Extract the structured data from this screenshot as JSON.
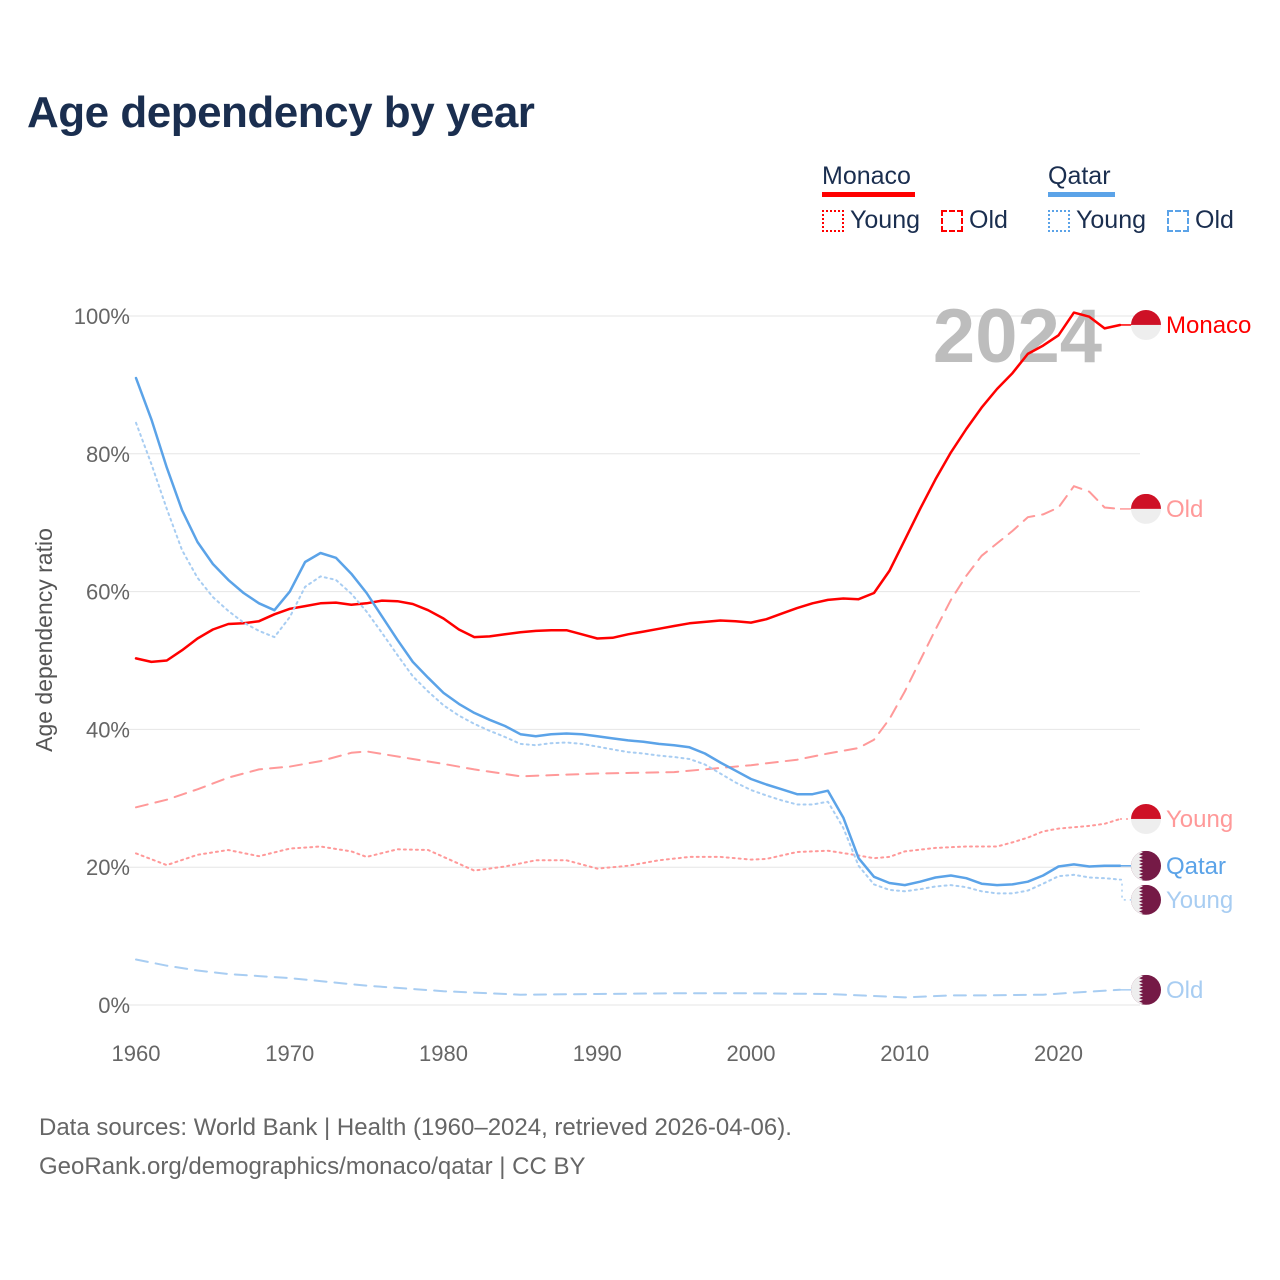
{
  "title": "Age dependency by year",
  "legend": {
    "groups": [
      {
        "name": "Monaco",
        "color": "#ff0000",
        "young_label": "Young",
        "old_label": "Old",
        "light": "#ff9999"
      },
      {
        "name": "Qatar",
        "color": "#5ba3e8",
        "young_label": "Young",
        "old_label": "Old",
        "light": "#a8cdf2"
      }
    ]
  },
  "year_watermark": "2024",
  "footer": {
    "line1": "Data sources: World Bank | Health (1960–2024, retrieved 2026-04-06).",
    "line2": "GeoRank.org/demographics/monaco/qatar | CC BY"
  },
  "chart_data": {
    "type": "line",
    "title": "Age dependency by year",
    "xlabel": "",
    "ylabel": "Age dependency ratio",
    "xlim": [
      1960,
      2024
    ],
    "ylim": [
      0,
      100
    ],
    "x_ticks": [
      "1960",
      "1970",
      "1980",
      "1990",
      "2000",
      "2010",
      "2020"
    ],
    "y_ticks": [
      "0%",
      "20%",
      "40%",
      "60%",
      "80%",
      "100%"
    ],
    "grid": true,
    "legend_position": "top-right",
    "series": [
      {
        "name": "Monaco",
        "end_label": "Monaco",
        "country": "Monaco",
        "style": "solid",
        "color": "#ff0000",
        "x": [
          1960,
          1961,
          1962,
          1963,
          1964,
          1965,
          1966,
          1967,
          1968,
          1969,
          1970,
          1971,
          1972,
          1973,
          1974,
          1975,
          1976,
          1977,
          1978,
          1979,
          1980,
          1981,
          1982,
          1983,
          1984,
          1985,
          1986,
          1987,
          1988,
          1989,
          1990,
          1991,
          1992,
          1993,
          1994,
          1995,
          1996,
          1997,
          1998,
          1999,
          2000,
          2001,
          2002,
          2003,
          2004,
          2005,
          2006,
          2007,
          2008,
          2009,
          2010,
          2011,
          2012,
          2013,
          2014,
          2015,
          2016,
          2017,
          2018,
          2019,
          2020,
          2021,
          2022,
          2023,
          2024
        ],
        "values": [
          50.3,
          49.8,
          50.0,
          51.5,
          53.2,
          54.5,
          55.3,
          55.4,
          55.7,
          56.7,
          57.5,
          57.9,
          58.3,
          58.4,
          58.1,
          58.3,
          58.7,
          58.6,
          58.2,
          57.3,
          56.1,
          54.5,
          53.4,
          53.5,
          53.8,
          54.1,
          54.3,
          54.4,
          54.4,
          53.8,
          53.2,
          53.3,
          53.8,
          54.2,
          54.6,
          55.0,
          55.4,
          55.6,
          55.8,
          55.7,
          55.5,
          56.0,
          56.8,
          57.6,
          58.3,
          58.8,
          59.0,
          58.9,
          59.8,
          63.0,
          67.5,
          72.0,
          76.3,
          80.2,
          83.6,
          86.7,
          89.4,
          91.7,
          94.5,
          95.7,
          97.2,
          100.5,
          99.9,
          98.2,
          98.7
        ]
      },
      {
        "name": "Monaco Old",
        "end_label": "Old",
        "country": "Monaco",
        "style": "dashed",
        "color": "#ff9999",
        "x": [
          1960,
          1962,
          1964,
          1966,
          1968,
          1970,
          1972,
          1974,
          1975,
          1978,
          1980,
          1982,
          1985,
          1990,
          1995,
          2000,
          2003,
          2005,
          2007,
          2008,
          2009,
          2010,
          2011,
          2012,
          2013,
          2014,
          2015,
          2016,
          2017,
          2018,
          2019,
          2020,
          2021,
          2022,
          2023,
          2024
        ],
        "values": [
          28.7,
          29.8,
          31.3,
          33.0,
          34.2,
          34.6,
          35.4,
          36.6,
          36.8,
          35.7,
          35.0,
          34.2,
          33.2,
          33.6,
          33.8,
          34.8,
          35.6,
          36.5,
          37.3,
          38.5,
          41.5,
          45.5,
          50.0,
          54.5,
          58.8,
          62.3,
          65.2,
          67.0,
          68.8,
          70.8,
          71.2,
          72.2,
          75.3,
          74.5,
          72.2,
          72.0
        ]
      },
      {
        "name": "Monaco Young",
        "end_label": "Young",
        "country": "Monaco",
        "style": "dotted",
        "color": "#ff9999",
        "x": [
          1960,
          1962,
          1964,
          1966,
          1968,
          1970,
          1972,
          1974,
          1975,
          1977,
          1979,
          1980,
          1982,
          1984,
          1986,
          1988,
          1990,
          1992,
          1994,
          1996,
          1998,
          2000,
          2001,
          2003,
          2005,
          2007,
          2008,
          2009,
          2010,
          2012,
          2014,
          2016,
          2017,
          2018,
          2019,
          2020,
          2022,
          2023,
          2024
        ],
        "values": [
          22.0,
          20.3,
          21.8,
          22.5,
          21.6,
          22.7,
          23.0,
          22.3,
          21.5,
          22.6,
          22.5,
          21.5,
          19.5,
          20.1,
          21.0,
          21.0,
          19.8,
          20.2,
          21.0,
          21.5,
          21.5,
          21.1,
          21.2,
          22.2,
          22.4,
          21.7,
          21.3,
          21.5,
          22.3,
          22.8,
          23.0,
          23.0,
          23.6,
          24.3,
          25.2,
          25.6,
          26.0,
          26.3,
          27.0
        ]
      },
      {
        "name": "Qatar",
        "end_label": "Qatar",
        "country": "Qatar",
        "style": "solid",
        "color": "#5ba3e8",
        "x": [
          1960,
          1961,
          1962,
          1963,
          1964,
          1965,
          1966,
          1967,
          1968,
          1969,
          1970,
          1971,
          1972,
          1973,
          1974,
          1975,
          1976,
          1977,
          1978,
          1979,
          1980,
          1981,
          1982,
          1983,
          1984,
          1985,
          1986,
          1987,
          1988,
          1989,
          1990,
          1991,
          1992,
          1993,
          1994,
          1995,
          1996,
          1997,
          1998,
          1999,
          2000,
          2001,
          2002,
          2003,
          2004,
          2005,
          2006,
          2007,
          2008,
          2009,
          2010,
          2011,
          2012,
          2013,
          2014,
          2015,
          2016,
          2017,
          2018,
          2019,
          2020,
          2021,
          2022,
          2023,
          2024
        ],
        "values": [
          91.0,
          85.0,
          78.0,
          71.8,
          67.2,
          64.0,
          61.7,
          59.8,
          58.3,
          57.3,
          60.0,
          64.3,
          65.6,
          64.9,
          62.6,
          59.8,
          56.4,
          53.0,
          49.8,
          47.5,
          45.3,
          43.7,
          42.4,
          41.4,
          40.5,
          39.3,
          39.0,
          39.3,
          39.4,
          39.3,
          39.0,
          38.7,
          38.4,
          38.2,
          37.9,
          37.7,
          37.4,
          36.5,
          35.2,
          34.0,
          32.8,
          32.0,
          31.3,
          30.6,
          30.6,
          31.1,
          27.2,
          21.3,
          18.6,
          17.7,
          17.4,
          17.9,
          18.5,
          18.8,
          18.4,
          17.6,
          17.4,
          17.5,
          17.9,
          18.8,
          20.1,
          20.4,
          20.1,
          20.2,
          20.2
        ]
      },
      {
        "name": "Qatar Young",
        "end_label": "Young",
        "country": "Qatar",
        "style": "dotted",
        "color": "#a8cdf2",
        "x": [
          1960,
          1961,
          1962,
          1963,
          1964,
          1965,
          1966,
          1967,
          1968,
          1969,
          1970,
          1971,
          1972,
          1973,
          1974,
          1975,
          1976,
          1977,
          1978,
          1979,
          1980,
          1981,
          1982,
          1983,
          1984,
          1985,
          1986,
          1987,
          1988,
          1989,
          1990,
          1991,
          1992,
          1993,
          1994,
          1995,
          1996,
          1997,
          1998,
          1999,
          2000,
          2001,
          2002,
          2003,
          2004,
          2005,
          2006,
          2007,
          2008,
          2009,
          2010,
          2011,
          2012,
          2013,
          2014,
          2015,
          2016,
          2017,
          2018,
          2019,
          2020,
          2021,
          2022,
          2023,
          2024
        ],
        "values": [
          84.5,
          78.5,
          72.0,
          66.0,
          62.0,
          59.2,
          57.2,
          55.5,
          54.3,
          53.4,
          56.3,
          60.7,
          62.2,
          61.7,
          59.7,
          57.1,
          54.0,
          50.8,
          47.7,
          45.5,
          43.5,
          42.0,
          40.8,
          39.8,
          38.9,
          37.9,
          37.7,
          38.0,
          38.1,
          37.9,
          37.5,
          37.1,
          36.7,
          36.5,
          36.2,
          36.0,
          35.7,
          34.9,
          33.6,
          32.3,
          31.2,
          30.4,
          29.7,
          29.1,
          29.1,
          29.5,
          25.7,
          20.2,
          17.5,
          16.7,
          16.5,
          16.8,
          17.2,
          17.4,
          17.1,
          16.5,
          16.2,
          16.2,
          16.6,
          17.6,
          18.7,
          18.9,
          18.5,
          18.4,
          18.2
        ]
      },
      {
        "name": "Qatar Old",
        "end_label": "Old",
        "country": "Qatar",
        "style": "dashed",
        "color": "#a8cdf2",
        "x": [
          1960,
          1962,
          1964,
          1966,
          1968,
          1970,
          1975,
          1980,
          1985,
          1990,
          1995,
          2000,
          2005,
          2008,
          2010,
          2013,
          2015,
          2019,
          2021,
          2024
        ],
        "values": [
          6.6,
          5.7,
          5.0,
          4.5,
          4.2,
          3.9,
          2.8,
          2.0,
          1.5,
          1.6,
          1.7,
          1.7,
          1.6,
          1.3,
          1.1,
          1.4,
          1.4,
          1.5,
          1.8,
          2.2
        ]
      }
    ]
  }
}
